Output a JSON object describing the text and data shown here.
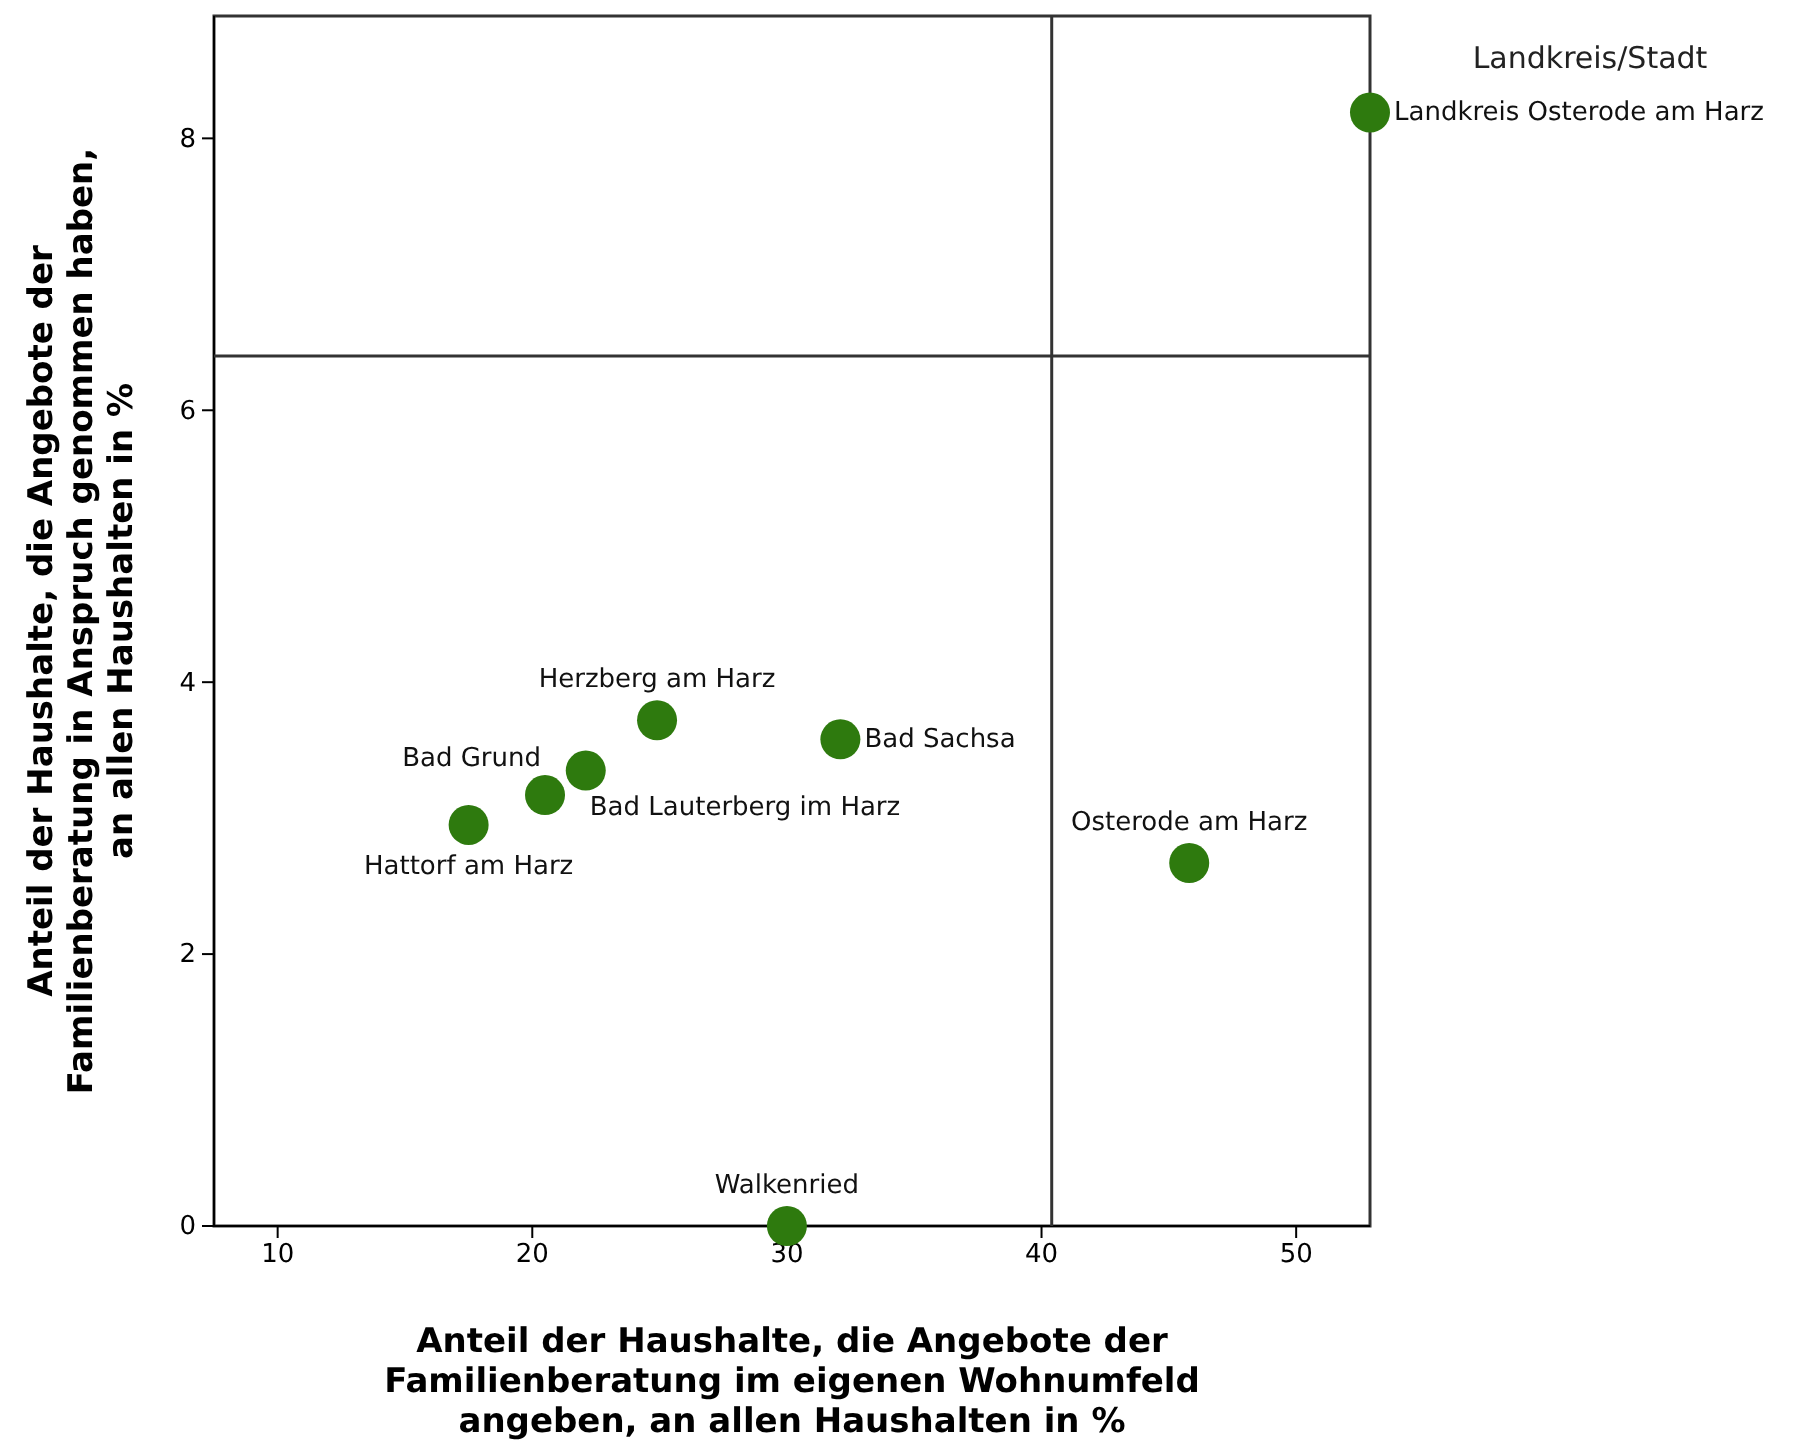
{
  "chart_data": {
    "type": "scatter",
    "xlabel": "Anteil der Haushalte, die Angebote der Familienberatung im eigenen Wohnumfeld angeben, an allen Haushalten in %",
    "ylabel": "Anteil der Haushalte, die Angebote der Familienberatung in Anspruch genommen haben, an allen Haushalten in %",
    "legend_title": "Landkreis/Stadt",
    "x": [
      52.9,
      24.9,
      32.1,
      20.5,
      22.1,
      17.5,
      45.8,
      30.0
    ],
    "series": [
      {
        "color": "#2e7a0e",
        "values": [
          8.19,
          3.72,
          3.58,
          3.17,
          3.35,
          2.95,
          2.67,
          0.0
        ]
      }
    ],
    "marker": "circle",
    "xlim": [
      7.5,
      52.9
    ],
    "xticks": [
      10,
      20,
      30,
      40,
      50
    ],
    "ylim": [
      0,
      8.9
    ],
    "yticks": [
      0,
      2,
      4,
      6,
      8
    ],
    "grid": false,
    "ref_lines": [
      {
        "axis": "x",
        "value": 40.4,
        "color": "#333333"
      },
      {
        "axis": "y",
        "value": 6.4,
        "color": "#333333"
      }
    ],
    "annotations": [
      {
        "text": "Landkreis Osterode am Harz",
        "x": 52.9,
        "y": 8.19
      },
      {
        "text": "Herzberg am Harz",
        "x": 24.9,
        "y": 3.72
      },
      {
        "text": "Bad Sachsa",
        "x": 32.1,
        "y": 3.58
      },
      {
        "text": "Bad Grund",
        "x": 20.5,
        "y": 3.17
      },
      {
        "text": "Bad Lauterberg im Harz",
        "x": 22.1,
        "y": 3.35
      },
      {
        "text": "Hattorf am Harz",
        "x": 17.5,
        "y": 2.95
      },
      {
        "text": "Osterode am Harz",
        "x": 45.8,
        "y": 2.67
      },
      {
        "text": "Walkenried",
        "x": 30.0,
        "y": 0.0
      }
    ]
  }
}
